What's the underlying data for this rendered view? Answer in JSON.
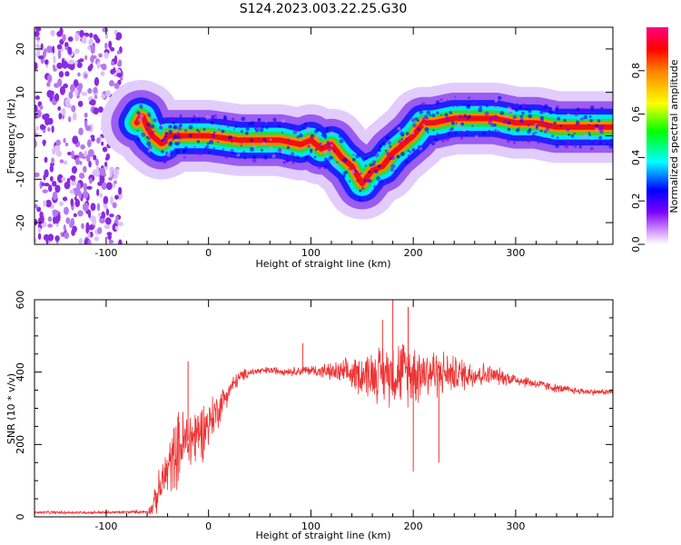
{
  "title": "S124.2023.003.22.25.G30",
  "chart_data": [
    {
      "type": "heatmap",
      "xlabel": "Height of straight line (km)",
      "ylabel": "Frequency (Hz)",
      "xlim": [
        -170,
        395
      ],
      "ylim": [
        -25,
        25
      ],
      "xticks": [
        -100,
        0,
        100,
        200,
        300
      ],
      "yticks": [
        -20,
        -10,
        0,
        10,
        20
      ],
      "colorbar": {
        "label": "Normalized spectral amplitude",
        "ticks": [
          "0.0",
          "0.2",
          "0.4",
          "0.6",
          "0.8"
        ],
        "range": [
          0,
          1
        ],
        "colormap": "rainbow (white-purple-blue-cyan-green-yellow-red-magenta)"
      },
      "ridge": {
        "x": [
          -70,
          -65,
          -60,
          -55,
          -50,
          -45,
          -40,
          -30,
          0,
          30,
          50,
          70,
          90,
          100,
          110,
          120,
          130,
          140,
          150,
          160,
          170,
          180,
          190,
          200,
          210,
          220,
          240,
          260,
          280,
          300,
          320,
          340,
          360,
          395
        ],
        "y": [
          3,
          5,
          2,
          0,
          -1,
          -2,
          0,
          0,
          0,
          -1,
          -1,
          -1,
          -2,
          -1,
          -3,
          -2,
          -5,
          -7,
          -11,
          -8,
          -7,
          -4,
          -2,
          0,
          3,
          3,
          4,
          4,
          4,
          3,
          3,
          2,
          2,
          2
        ]
      },
      "noise_region": {
        "x": [
          -170,
          -85
        ],
        "y": [
          -25,
          25
        ]
      }
    },
    {
      "type": "line",
      "xlabel": "Height of straight line (km)",
      "ylabel": "SNR (10 * v/v)",
      "xlim": [
        -170,
        395
      ],
      "ylim": [
        0,
        600
      ],
      "xticks": [
        -100,
        0,
        100,
        200,
        300
      ],
      "yticks": [
        0,
        200,
        400,
        600
      ],
      "color": "#ee3333",
      "envelope": {
        "x": [
          -170,
          -100,
          -60,
          -55,
          -50,
          -40,
          -30,
          -20,
          -10,
          0,
          10,
          20,
          30,
          40,
          60,
          80,
          100,
          120,
          140,
          160,
          180,
          200,
          220,
          240,
          260,
          280,
          300,
          320,
          340,
          360,
          380,
          395
        ],
        "mean": [
          12,
          12,
          14,
          25,
          60,
          130,
          190,
          210,
          230,
          260,
          300,
          350,
          385,
          400,
          405,
          402,
          405,
          400,
          395,
          395,
          400,
          402,
          400,
          395,
          395,
          390,
          380,
          368,
          355,
          348,
          345,
          345
        ],
        "spread": [
          4,
          4,
          5,
          20,
          50,
          80,
          100,
          100,
          90,
          70,
          50,
          30,
          20,
          12,
          10,
          12,
          15,
          25,
          45,
          70,
          90,
          90,
          70,
          50,
          40,
          25,
          18,
          14,
          12,
          10,
          8,
          8
        ]
      },
      "spikes": [
        {
          "x": -20,
          "y": 430
        },
        {
          "x": 92,
          "y": 480
        },
        {
          "x": 170,
          "y": 545
        },
        {
          "x": 180,
          "y": 600
        },
        {
          "x": 195,
          "y": 580
        },
        {
          "x": 200,
          "y": 125
        },
        {
          "x": 225,
          "y": 150
        }
      ]
    }
  ]
}
